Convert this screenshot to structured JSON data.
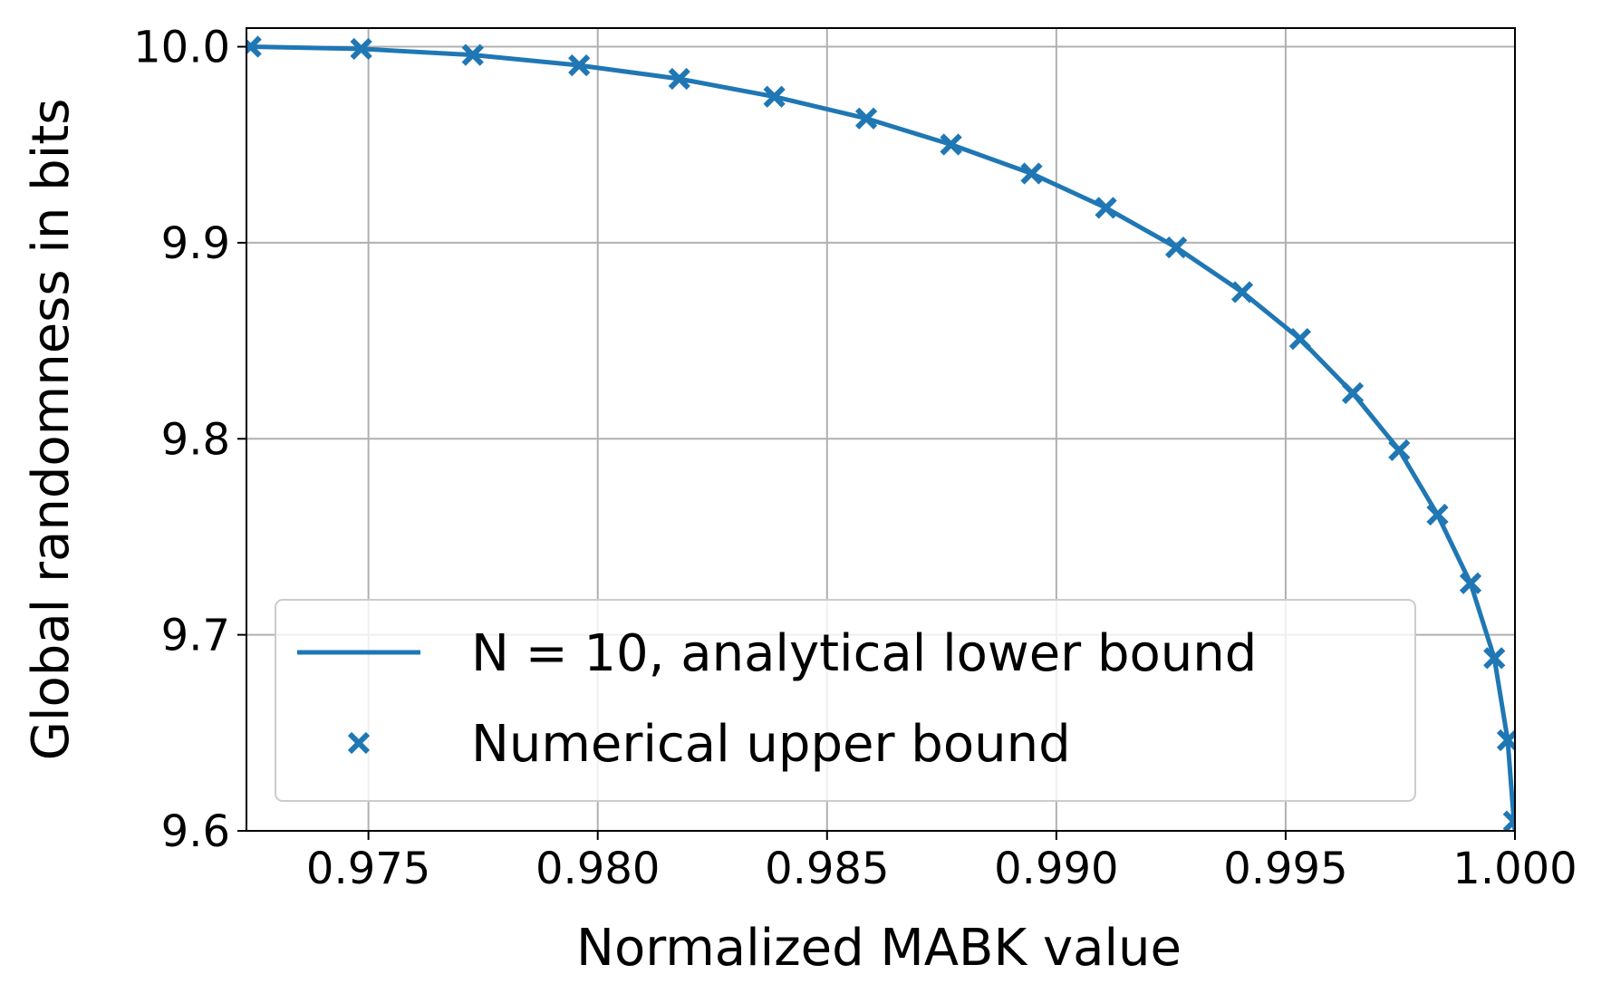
{
  "chart_data": {
    "type": "line",
    "xlabel": "Normalized MABK value",
    "ylabel": "Global randomness in bits",
    "xlim": [
      0.97234,
      1.0
    ],
    "ylim": [
      9.6,
      10.0095
    ],
    "xticks": [
      {
        "value": 0.975,
        "label": "0.975"
      },
      {
        "value": 0.98,
        "label": "0.980"
      },
      {
        "value": 0.985,
        "label": "0.985"
      },
      {
        "value": 0.99,
        "label": "0.990"
      },
      {
        "value": 0.995,
        "label": "0.995"
      },
      {
        "value": 1.0,
        "label": "1.000"
      }
    ],
    "yticks": [
      {
        "value": 9.6,
        "label": "9.6"
      },
      {
        "value": 9.7,
        "label": "9.7"
      },
      {
        "value": 9.8,
        "label": "9.8"
      },
      {
        "value": 9.9,
        "label": "9.9"
      },
      {
        "value": 10.0,
        "label": "10.0"
      }
    ],
    "grid": true,
    "legend": "lower left",
    "series": [
      {
        "name": "N = 10, analytical lower bound",
        "color": "#1f77b4",
        "style": "line",
        "x": [
          0.972432,
          0.974842,
          0.977275,
          0.979595,
          0.981779,
          0.983851,
          0.985856,
          0.987703,
          0.989459,
          0.991081,
          0.992613,
          0.994054,
          0.995315,
          0.996464,
          0.997477,
          0.998311,
          0.999032,
          0.99955,
          0.999842,
          0.999977,
          1.0
        ],
        "values": [
          10.0,
          9.9989,
          9.9958,
          9.9905,
          9.9836,
          9.9745,
          9.9634,
          9.9501,
          9.9353,
          9.9178,
          9.8976,
          9.8748,
          9.8509,
          9.8233,
          9.7942,
          9.7613,
          9.7263,
          9.6881,
          9.6462,
          9.6048,
          9.6
        ]
      },
      {
        "name": "Numerical upper bound",
        "color": "#1f77b4",
        "style": "marker",
        "x": [
          0.972432,
          0.974842,
          0.977275,
          0.979595,
          0.981779,
          0.983851,
          0.985856,
          0.987703,
          0.989459,
          0.991081,
          0.992613,
          0.994054,
          0.995315,
          0.996464,
          0.997477,
          0.998311,
          0.999032,
          0.99955,
          0.999842,
          0.999977
        ],
        "values": [
          10.0,
          9.9989,
          9.9958,
          9.9905,
          9.9836,
          9.9745,
          9.9634,
          9.9501,
          9.9353,
          9.9178,
          9.8976,
          9.8748,
          9.8509,
          9.8233,
          9.7942,
          9.7613,
          9.7263,
          9.6881,
          9.6462,
          9.6048
        ]
      }
    ]
  }
}
